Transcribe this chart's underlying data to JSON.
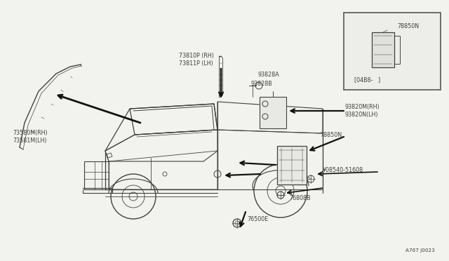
{
  "bg_color": "#f2f2ee",
  "line_color": "#404040",
  "text_color": "#404040",
  "arrow_color": "#111111",
  "title_ref": "A767 J0023",
  "inset_label": "78850N",
  "inset_ref": "[04B8-   ]",
  "fs": 5.8,
  "fs_small": 5.2
}
